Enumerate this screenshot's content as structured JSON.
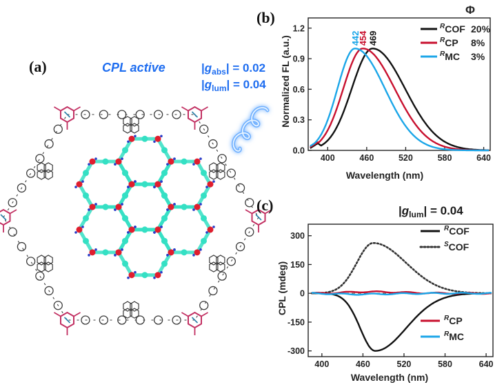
{
  "panels": {
    "a": {
      "label": "(a)",
      "cpl_text": "CPL active",
      "g_abs": {
        "prefix": "|",
        "var": "g",
        "sub": "abs",
        "suffix": "| = 0.02"
      },
      "g_lum": {
        "prefix": "|",
        "var": "g",
        "sub": "lum",
        "suffix": "| = 0.04"
      },
      "colors": {
        "text_blue": "#1e6df0",
        "cyan_node": "#34e0c4",
        "red_node": "#e01e2e",
        "blue_node": "#2a3cc8",
        "framework_pink": "#c23062",
        "framework_dark": "#3a3a3a"
      }
    },
    "b": {
      "label": "(b)",
      "phi_label": "Φ"
    },
    "c": {
      "label": "(c)"
    }
  },
  "chart_data": [
    {
      "type": "line",
      "panel": "b",
      "xlabel": "Wavelength (nm)",
      "ylabel": "Normalized FL (a.u.)",
      "xlim": [
        370,
        650
      ],
      "ylim": [
        0,
        1.3
      ],
      "xticks": [
        400,
        460,
        520,
        580,
        640
      ],
      "yticks": [
        0.0,
        0.3,
        0.6,
        0.9,
        1.2
      ],
      "ytick_labels": [
        "0.0",
        "0.3",
        "0.6",
        "0.9",
        "1.2"
      ],
      "series": [
        {
          "name": "COF",
          "sup": "R",
          "phi": "20%",
          "peak": 469,
          "peak_label": "469",
          "color": "#111111",
          "sigma_left": 32,
          "sigma_right": 50,
          "onset": {
            "x0": 375,
            "y0": 0.03,
            "xs": 385,
            "ys": 0.07
          }
        },
        {
          "name": "CP",
          "sup": "R",
          "phi": "8%",
          "peak": 454,
          "peak_label": "454",
          "color": "#c8102e",
          "sigma_left": 30,
          "sigma_right": 49,
          "onset": {
            "x0": 375,
            "y0": 0.04,
            "xs": 385,
            "ys": 0.08
          }
        },
        {
          "name": "MC",
          "sup": "R",
          "phi": "3%",
          "peak": 442,
          "peak_label": "442",
          "color": "#1ba6e8",
          "sigma_left": 27,
          "sigma_right": 46,
          "onset": {
            "x0": 375,
            "y0": 0.05,
            "xs": 385,
            "ys": 0.09
          }
        }
      ],
      "legend_placement": "top-right"
    },
    {
      "type": "line",
      "panel": "c",
      "xlabel": "Wavelength (nm)",
      "ylabel": "CPL (mdeg)",
      "xlim": [
        380,
        650
      ],
      "ylim": [
        -330,
        360
      ],
      "xticks": [
        400,
        460,
        520,
        580,
        640
      ],
      "yticks": [
        300,
        150,
        0,
        -150,
        -300
      ],
      "annotation": {
        "prefix": "|",
        "var": "g",
        "sub": "lum",
        "suffix": "| = 0.04"
      },
      "series": [
        {
          "name": "COF",
          "sup": "R",
          "style": "solid",
          "color": "#111111",
          "peak_x": 478,
          "peak_y": -300,
          "sigma_left": 22,
          "sigma_right": 45
        },
        {
          "name": "COF",
          "sup": "S",
          "style": "dotted",
          "color": "#333333",
          "peak_x": 475,
          "peak_y": 262,
          "sigma_left": 24,
          "sigma_right": 48
        },
        {
          "name": "CP",
          "sup": "R",
          "style": "solid",
          "color": "#c8102e",
          "peak_x": 465,
          "peak_y": 8,
          "sigma_left": 30,
          "sigma_right": 50
        },
        {
          "name": "MC",
          "sup": "R",
          "style": "solid",
          "color": "#1ba6e8",
          "peak_x": 450,
          "peak_y": -5,
          "sigma_left": 30,
          "sigma_right": 50
        }
      ],
      "legend_top_entries": [
        0,
        1
      ],
      "legend_bottom_entries": [
        2,
        3
      ]
    }
  ]
}
